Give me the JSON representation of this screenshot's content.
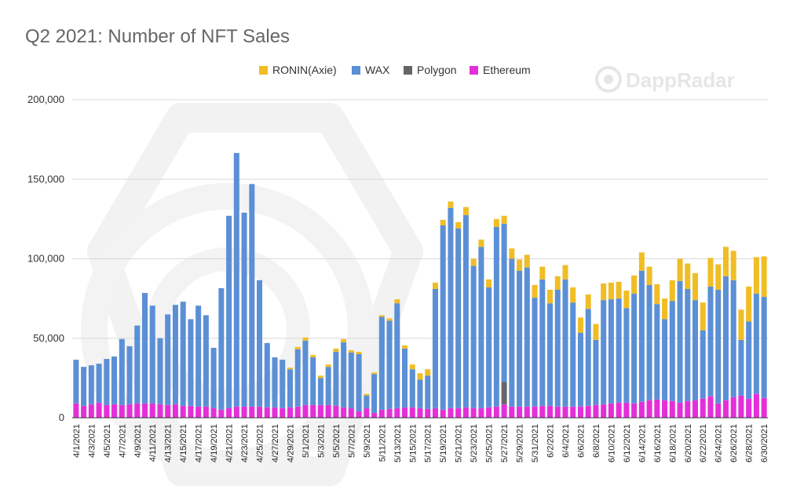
{
  "watermark": {
    "brand": "DappRadar"
  },
  "colors": {
    "ronin": "#f0bd25",
    "wax": "#5b8fd6",
    "polygon": "#666666",
    "ethereum": "#e42fd9",
    "grid": "#d9d9d9",
    "axis": "#333333"
  },
  "chart_data": {
    "type": "bar",
    "stacked": true,
    "title": "Q2 2021: Number of NFT Sales",
    "xlabel": "",
    "ylabel": "",
    "ylim": [
      0,
      200000
    ],
    "yticks": [
      0,
      50000,
      100000,
      150000,
      200000
    ],
    "ytick_labels": [
      "0",
      "50,000",
      "100,000",
      "150,000",
      "200,000"
    ],
    "legend_position": "top",
    "grid": true,
    "categories": [
      "4/1/2021",
      "4/2/2021",
      "4/3/2021",
      "4/4/2021",
      "4/5/2021",
      "4/6/2021",
      "4/7/2021",
      "4/8/2021",
      "4/9/2021",
      "4/10/2021",
      "4/11/2021",
      "4/12/2021",
      "4/13/2021",
      "4/14/2021",
      "4/15/2021",
      "4/16/2021",
      "4/17/2021",
      "4/18/2021",
      "4/19/2021",
      "4/20/2021",
      "4/21/2021",
      "4/22/2021",
      "4/23/2021",
      "4/24/2021",
      "4/25/2021",
      "4/26/2021",
      "4/27/2021",
      "4/28/2021",
      "4/29/2021",
      "4/30/2021",
      "5/1/2021",
      "5/2/2021",
      "5/3/2021",
      "5/4/2021",
      "5/5/2021",
      "5/6/2021",
      "5/7/2021",
      "5/8/2021",
      "5/9/2021",
      "5/10/2021",
      "5/11/2021",
      "5/12/2021",
      "5/13/2021",
      "5/14/2021",
      "5/15/2021",
      "5/16/2021",
      "5/17/2021",
      "5/18/2021",
      "5/19/2021",
      "5/20/2021",
      "5/21/2021",
      "5/22/2021",
      "5/23/2021",
      "5/24/2021",
      "5/25/2021",
      "5/26/2021",
      "5/27/2021",
      "5/28/2021",
      "5/29/2021",
      "5/30/2021",
      "5/31/2021",
      "6/1/2021",
      "6/2/2021",
      "6/3/2021",
      "6/4/2021",
      "6/5/2021",
      "6/6/2021",
      "6/7/2021",
      "6/8/2021",
      "6/9/2021",
      "6/10/2021",
      "6/11/2021",
      "6/12/2021",
      "6/13/2021",
      "6/14/2021",
      "6/15/2021",
      "6/16/2021",
      "6/17/2021",
      "6/18/2021",
      "6/19/2021",
      "6/20/2021",
      "6/21/2021",
      "6/22/2021",
      "6/23/2021",
      "6/24/2021",
      "6/25/2021",
      "6/26/2021",
      "6/27/2021",
      "6/28/2021",
      "6/29/2021",
      "6/30/2021"
    ],
    "shown_tick_labels": [
      "4/1/2021",
      "4/3/2021",
      "4/5/2021",
      "4/7/2021",
      "4/9/2021",
      "4/11/2021",
      "4/13/2021",
      "4/15/2021",
      "4/17/2021",
      "4/19/2021",
      "4/21/2021",
      "4/23/2021",
      "4/25/2021",
      "4/27/2021",
      "4/29/2021",
      "5/1/2021",
      "5/3/2021",
      "5/5/2021",
      "5/7/2021",
      "5/9/2021",
      "5/11/2021",
      "5/13/2021",
      "5/15/2021",
      "5/17/2021",
      "5/19/2021",
      "5/21/2021",
      "5/23/2021",
      "5/25/2021",
      "5/27/2021",
      "5/29/2021",
      "5/31/2021",
      "6/2/2021",
      "6/4/2021",
      "6/6/2021",
      "6/8/2021",
      "6/10/2021",
      "6/12/2021",
      "6/14/2021",
      "6/16/2021",
      "6/18/2021",
      "6/20/2021",
      "6/22/2021",
      "6/24/2021",
      "6/26/2021",
      "6/28/2021",
      "6/30/2021"
    ],
    "series": [
      {
        "name": "Ethereum",
        "color": "#e42fd9",
        "values": [
          9000,
          7500,
          8500,
          9500,
          8000,
          8500,
          8000,
          8500,
          9000,
          9000,
          9000,
          8500,
          8000,
          8500,
          7500,
          7500,
          7000,
          7000,
          6000,
          5000,
          6000,
          7000,
          7000,
          7000,
          7000,
          6500,
          6500,
          6000,
          6500,
          7000,
          8000,
          8000,
          8000,
          8000,
          7500,
          6500,
          6000,
          4000,
          6000,
          3000,
          5000,
          5500,
          6000,
          6500,
          6500,
          6000,
          5500,
          6000,
          5000,
          6000,
          6000,
          6500,
          6000,
          6000,
          6500,
          7000,
          8500,
          7000,
          7000,
          7000,
          7000,
          7500,
          7500,
          7000,
          7000,
          7000,
          7000,
          7500,
          8000,
          8500,
          9000,
          9500,
          9500,
          9000,
          10000,
          11000,
          11500,
          11000,
          10500,
          9500,
          10500,
          11000,
          12000,
          13500,
          9000,
          11000,
          13000,
          14000,
          12000,
          15000,
          12500
        ]
      },
      {
        "name": "Polygon",
        "color": "#666666",
        "values": [
          0,
          0,
          0,
          0,
          0,
          0,
          0,
          0,
          0,
          0,
          0,
          0,
          0,
          0,
          0,
          0,
          0,
          0,
          0,
          0,
          0,
          0,
          0,
          0,
          0,
          0,
          0,
          0,
          0,
          0,
          0,
          0,
          0,
          0,
          0,
          0,
          0,
          0,
          0,
          0,
          0,
          0,
          0,
          0,
          0,
          0,
          0,
          0,
          0,
          0,
          0,
          0,
          0,
          0,
          0,
          0,
          14000,
          0,
          0,
          0,
          0,
          0,
          0,
          0,
          0,
          0,
          0,
          0,
          0,
          0,
          0,
          0,
          0,
          0,
          0,
          0,
          0,
          0,
          0,
          0,
          0,
          0,
          0,
          0,
          0,
          0,
          0,
          0,
          0,
          0,
          0
        ]
      },
      {
        "name": "WAX",
        "color": "#5b8fd6",
        "values": [
          27500,
          24500,
          24500,
          24500,
          29000,
          30000,
          41500,
          36500,
          49000,
          69500,
          61500,
          41500,
          57000,
          62500,
          65500,
          54500,
          63500,
          57500,
          38000,
          76500,
          121000,
          159500,
          122000,
          140000,
          79500,
          40500,
          31500,
          30500,
          24000,
          36000,
          40500,
          30000,
          17000,
          24000,
          34000,
          41000,
          35000,
          36000,
          8000,
          24500,
          58500,
          55500,
          66000,
          37000,
          24000,
          18000,
          21000,
          75000,
          116000,
          126000,
          113000,
          121000,
          89500,
          101500,
          75500,
          113000,
          99500,
          93000,
          85500,
          87500,
          68500,
          79500,
          64500,
          73500,
          80000,
          65500,
          46500,
          61000,
          41000,
          65500,
          65500,
          65500,
          59500,
          69000,
          82500,
          72500,
          60000,
          51000,
          63000,
          76500,
          70500,
          63000,
          43000,
          69000,
          71500,
          78000,
          73500,
          35000,
          48500,
          63000,
          63500
        ]
      },
      {
        "name": "RONIN(Axie)",
        "color": "#f0bd25",
        "values": [
          0,
          0,
          0,
          0,
          0,
          0,
          0,
          0,
          0,
          0,
          0,
          0,
          0,
          0,
          0,
          0,
          0,
          0,
          0,
          0,
          0,
          0,
          0,
          0,
          0,
          0,
          0,
          0,
          1000,
          1500,
          2000,
          1500,
          1500,
          1500,
          2000,
          2000,
          1500,
          1500,
          1000,
          1000,
          1000,
          1500,
          2500,
          2000,
          3000,
          4000,
          4000,
          4000,
          3500,
          4000,
          4000,
          5000,
          4500,
          4500,
          5000,
          5000,
          5000,
          6500,
          7000,
          8000,
          8000,
          8000,
          8500,
          8500,
          9000,
          9500,
          9500,
          9000,
          10000,
          10500,
          10500,
          10500,
          11000,
          11500,
          11500,
          11500,
          12500,
          13000,
          13000,
          14000,
          16000,
          17000,
          17500,
          18000,
          16000,
          18500,
          18500,
          19000,
          22000,
          23000,
          25500
        ]
      }
    ]
  }
}
